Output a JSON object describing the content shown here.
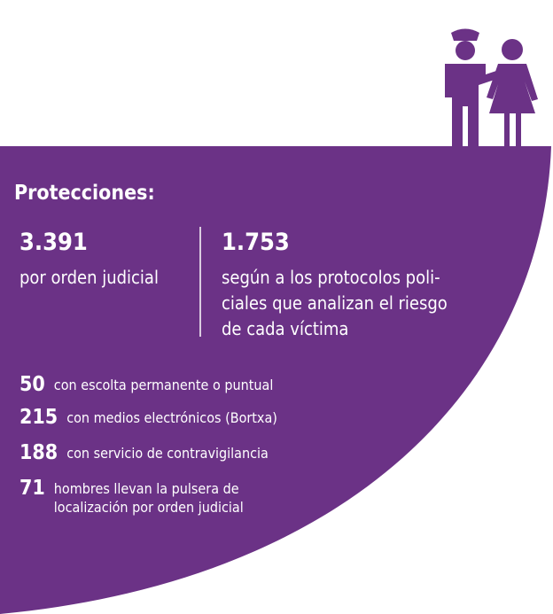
{
  "title": "Protecciones:",
  "main": [
    {
      "number": "3.391",
      "lines": [
        "por orden judicial"
      ]
    },
    {
      "number": "1.753",
      "lines": [
        "según a los protocolos poli-",
        "ciales que analizan el riesgo",
        "de cada víctima"
      ]
    }
  ],
  "items": [
    {
      "number": "50",
      "lines": [
        "con escolta permanente o puntual"
      ]
    },
    {
      "number": "215",
      "lines": [
        "con medios electrónicos (Bortxa)"
      ]
    },
    {
      "number": "188",
      "lines": [
        "con servicio de contravigilancia"
      ]
    },
    {
      "number": "71",
      "lines": [
        "hombres llevan la pulsera de",
        "localización por orden judicial"
      ]
    }
  ]
}
